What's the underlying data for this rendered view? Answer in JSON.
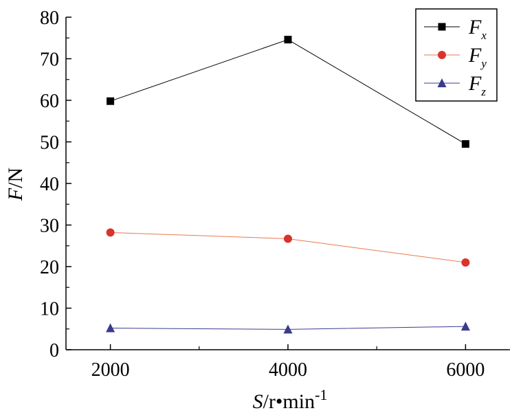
{
  "chart_data": {
    "type": "line",
    "x": [
      2000,
      4000,
      6000
    ],
    "xlim": [
      1500,
      6500
    ],
    "ylim": [
      0,
      80
    ],
    "x_ticks": [
      2000,
      4000,
      6000
    ],
    "x_ticks_minor": [
      3000,
      5000
    ],
    "y_ticks": [
      0,
      10,
      20,
      30,
      40,
      50,
      60,
      70,
      80
    ],
    "x_tick_labels": [
      "2000",
      "4000",
      "6000"
    ],
    "y_tick_labels": [
      "0",
      "10",
      "20",
      "30",
      "40",
      "50",
      "60",
      "70",
      "80"
    ],
    "xlabel": {
      "var": "S",
      "unit": "/r•min",
      "exp": "-1"
    },
    "ylabel": {
      "var": "F",
      "unit": "/N"
    },
    "grid": false,
    "legend_position": "top-right",
    "series": [
      {
        "name": "Fx",
        "name_main": "F",
        "name_sub": "x",
        "values": [
          59.8,
          74.6,
          49.5
        ],
        "color": "#000000",
        "marker": "square"
      },
      {
        "name": "Fy",
        "name_main": "F",
        "name_sub": "y",
        "values": [
          28.2,
          26.7,
          21.0
        ],
        "color": "#d9342b",
        "line_color": "#e87850",
        "marker": "circle"
      },
      {
        "name": "Fz",
        "name_main": "F",
        "name_sub": "z",
        "values": [
          5.2,
          4.9,
          5.6
        ],
        "color": "#3a3a8f",
        "marker": "triangle"
      }
    ]
  }
}
